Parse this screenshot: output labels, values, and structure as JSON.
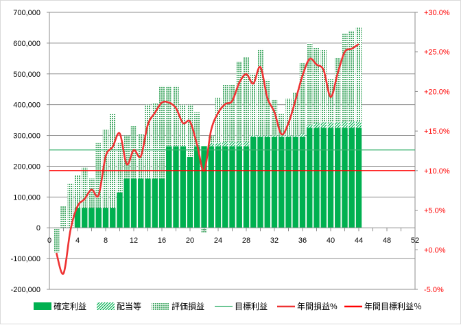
{
  "chart_data": {
    "type": "bar",
    "stacked": true,
    "x": [
      1,
      2,
      3,
      4,
      5,
      6,
      7,
      8,
      9,
      10,
      11,
      12,
      13,
      14,
      15,
      16,
      17,
      18,
      19,
      20,
      21,
      22,
      23,
      24,
      25,
      26,
      27,
      28,
      29,
      30,
      31,
      32,
      33,
      34,
      35,
      36,
      37,
      38,
      39,
      40,
      41,
      42,
      43,
      44
    ],
    "x_ticks": [
      0,
      4,
      8,
      12,
      16,
      20,
      24,
      28,
      32,
      36,
      40,
      44,
      48,
      52
    ],
    "xlim": [
      0,
      52
    ],
    "y_ticks_left": [
      -200000,
      -100000,
      0,
      100000,
      200000,
      300000,
      400000,
      500000,
      600000,
      700000
    ],
    "y_tick_labels_left": [
      "-200,000",
      "-100,000",
      "0",
      "100,000",
      "200,000",
      "300,000",
      "400,000",
      "500,000",
      "600,000",
      "700,000"
    ],
    "ylim_left": [
      -200000,
      700000
    ],
    "y_ticks_right": [
      -5,
      0,
      5,
      10,
      15,
      20,
      25,
      30
    ],
    "y_tick_labels_right": [
      "-5.0%",
      "+0.0%",
      "+5.0%",
      "+10.0%",
      "+15.0%",
      "+20.0%",
      "+25.0%",
      "+30.0%"
    ],
    "ylim_right": [
      -5,
      30
    ],
    "grid": "horizontal",
    "legend_position": "bottom",
    "series": [
      {
        "name": "確定利益",
        "kind": "bar",
        "color": "#00b050",
        "values": [
          0,
          0,
          0,
          65000,
          65000,
          65000,
          65000,
          65000,
          65000,
          115000,
          160000,
          160000,
          160000,
          160000,
          160000,
          160000,
          265000,
          265000,
          265000,
          230000,
          265000,
          265000,
          265000,
          265000,
          265000,
          265000,
          265000,
          265000,
          295000,
          295000,
          295000,
          295000,
          295000,
          295000,
          295000,
          295000,
          325000,
          325000,
          325000,
          325000,
          325000,
          325000,
          325000,
          325000
        ]
      },
      {
        "name": "配当等",
        "kind": "bar",
        "color": "#00b050",
        "pattern": "diagonal",
        "values": [
          0,
          0,
          0,
          0,
          0,
          0,
          0,
          0,
          0,
          0,
          0,
          0,
          0,
          0,
          0,
          0,
          0,
          0,
          0,
          0,
          0,
          0,
          10000,
          12000,
          14000,
          15000,
          15000,
          15000,
          5000,
          5000,
          5000,
          5000,
          5000,
          5000,
          5000,
          10000,
          10000,
          15000,
          18000,
          18000,
          18000,
          20000,
          20000,
          20000
        ]
      },
      {
        "name": "評価損益",
        "kind": "bar",
        "color": "#4bac6b",
        "pattern": "dots",
        "values": [
          -80000,
          70000,
          145000,
          105000,
          130000,
          95000,
          210000,
          255000,
          305000,
          160000,
          140000,
          170000,
          145000,
          240000,
          245000,
          300000,
          195000,
          195000,
          135000,
          170000,
          110000,
          -15000,
          25000,
          145000,
          185000,
          185000,
          260000,
          275000,
          200000,
          280000,
          180000,
          115000,
          70000,
          120000,
          140000,
          230000,
          265000,
          245000,
          235000,
          140000,
          210000,
          285000,
          295000,
          305000
        ]
      },
      {
        "name": "目標利益",
        "kind": "line",
        "axis": "left",
        "color": "#3cb371",
        "value": 253000
      },
      {
        "name": "年間損益%",
        "kind": "line",
        "axis": "right",
        "color": "#ee3333",
        "values": [
          -0.4,
          -3.0,
          2.5,
          5.5,
          6.4,
          7.6,
          6.9,
          11.8,
          13.0,
          14.7,
          10.8,
          12.6,
          11.8,
          15.8,
          17.3,
          18.6,
          18.6,
          17.9,
          16.0,
          16.2,
          13.3,
          10.0,
          15.1,
          17.3,
          18.4,
          18.8,
          21.1,
          22.2,
          21.0,
          23.1,
          19.2,
          17.4,
          14.6,
          16.0,
          18.9,
          22.0,
          24.1,
          23.4,
          22.7,
          19.3,
          22.3,
          25.0,
          25.4,
          26.0
        ]
      },
      {
        "name": "年間目標利益％",
        "kind": "line",
        "axis": "right",
        "color": "#ff0000",
        "value": 10
      }
    ]
  }
}
